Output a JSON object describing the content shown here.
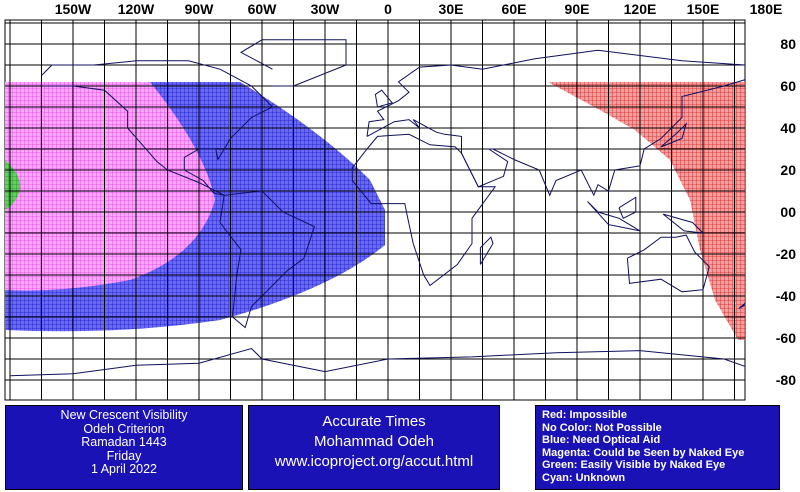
{
  "map": {
    "longitude_labels": [
      "150W",
      "120W",
      "90W",
      "60W",
      "30W",
      "0",
      "30E",
      "60E",
      "90E",
      "120E",
      "150E",
      "180E"
    ],
    "latitude_labels": [
      "80",
      "60",
      "40",
      "20",
      "00",
      "-20",
      "-40",
      "-60",
      "-80"
    ]
  },
  "info": {
    "criterion": [
      "New Crescent Visibility",
      "Odeh Criterion",
      "Ramadan 1443",
      "Friday",
      "1 April 2022"
    ],
    "credits": [
      "Accurate Times",
      "Mohammad Odeh",
      "www.icoproject.org/accut.html"
    ],
    "legend": [
      "Red: Impossible",
      "No Color: Not Possible",
      "Blue: Need Optical Aid",
      "Magenta: Could be Seen by Naked Eye",
      "Green: Easily Visible by Naked Eye",
      "Cyan: Unknown"
    ]
  }
}
